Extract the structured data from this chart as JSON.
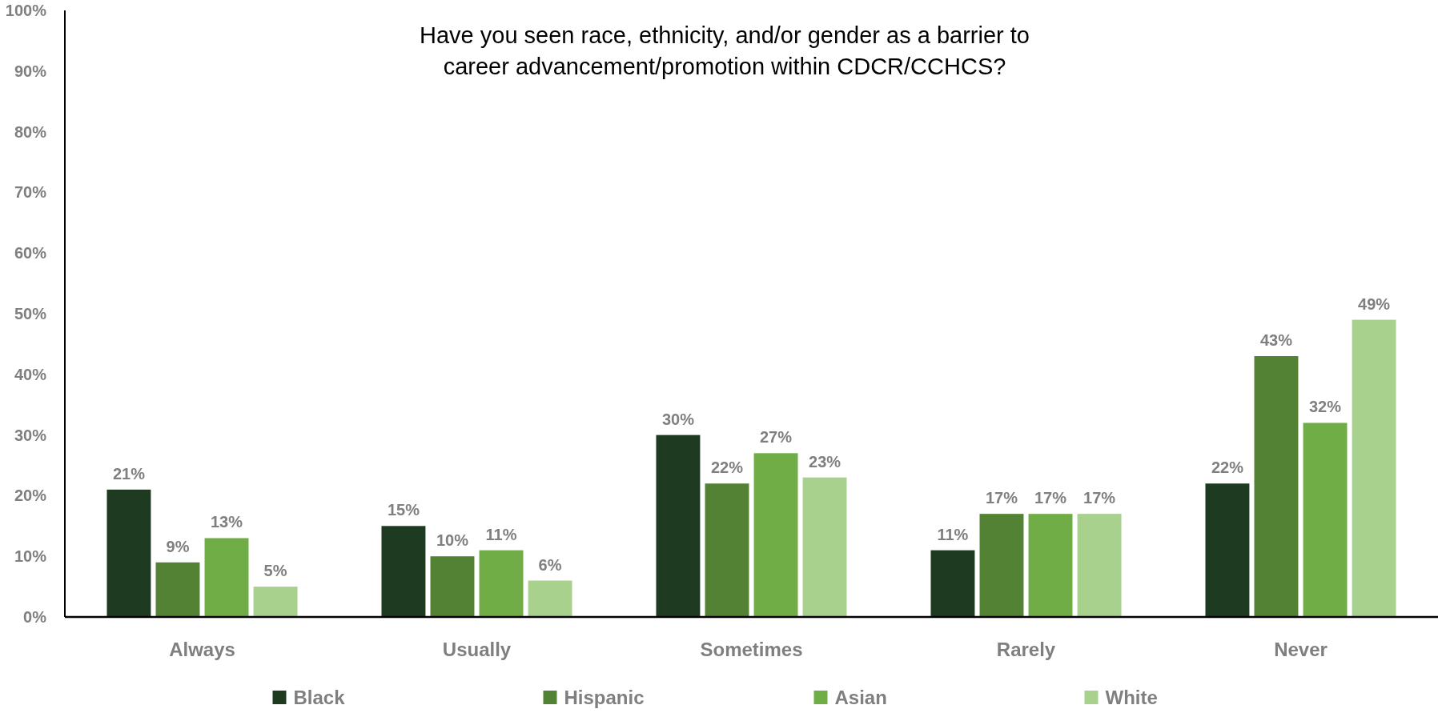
{
  "chart_data": {
    "type": "bar",
    "title": "Have you seen race, ethnicity, and/or gender as a barrier to career advancement/promotion within CDCR/CCHCS?",
    "categories": [
      "Always",
      "Usually",
      "Sometimes",
      "Rarely",
      "Never"
    ],
    "series": [
      {
        "name": "Black",
        "color": "#1e3a21",
        "values": [
          21,
          15,
          30,
          11,
          22
        ],
        "value_labels": [
          "21%",
          "15%",
          "30%",
          "11%",
          "22%"
        ]
      },
      {
        "name": "Hispanic",
        "color": "#548235",
        "values": [
          9,
          10,
          22,
          17,
          43
        ],
        "value_labels": [
          "9%",
          "10%",
          "22%",
          "17%",
          "43%"
        ]
      },
      {
        "name": "Asian",
        "color": "#70ad47",
        "values": [
          13,
          11,
          27,
          17,
          32
        ],
        "value_labels": [
          "13%",
          "11%",
          "27%",
          "17%",
          "32%"
        ]
      },
      {
        "name": "White",
        "color": "#a9d18e",
        "values": [
          5,
          6,
          23,
          17,
          49
        ],
        "value_labels": [
          "5%",
          "6%",
          "23%",
          "17%",
          "49%"
        ]
      }
    ],
    "ylim": [
      0,
      100
    ],
    "yticks": [
      {
        "value": 0,
        "label": "0%"
      },
      {
        "value": 10,
        "label": "10%"
      },
      {
        "value": 20,
        "label": "20%"
      },
      {
        "value": 30,
        "label": "30%"
      },
      {
        "value": 40,
        "label": "40%"
      },
      {
        "value": 50,
        "label": "50%"
      },
      {
        "value": 60,
        "label": "60%"
      },
      {
        "value": 70,
        "label": "70%"
      },
      {
        "value": 80,
        "label": "80%"
      },
      {
        "value": 90,
        "label": "90%"
      },
      {
        "value": 100,
        "label": "100%"
      }
    ],
    "legend": "bottom"
  }
}
